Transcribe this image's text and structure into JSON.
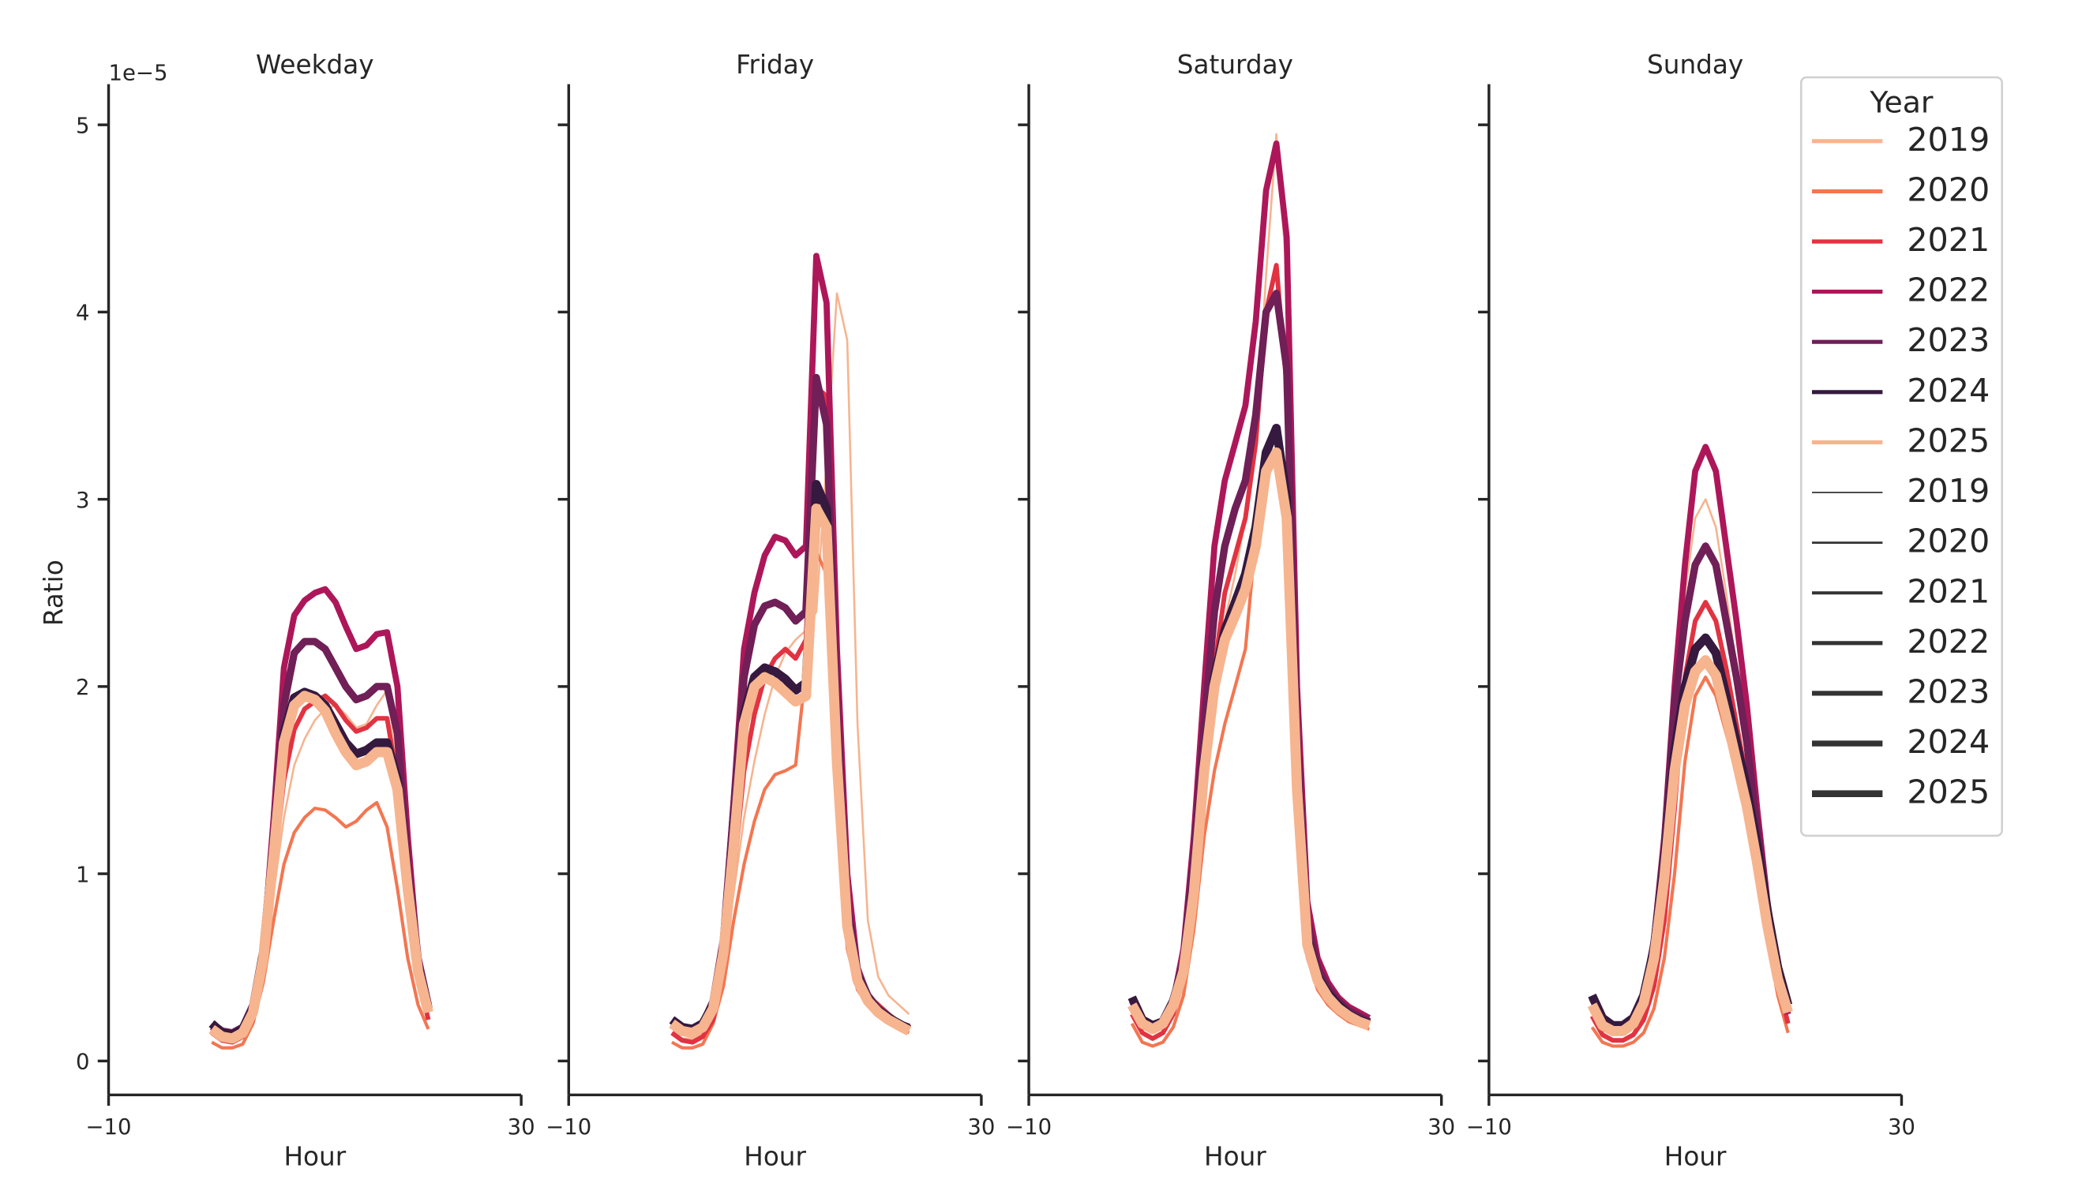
{
  "chart_data": {
    "type": "line",
    "ylabel": "Ratio",
    "xlabel": "Hour",
    "offset_label": "1e−5",
    "y_scale": 1e-05,
    "xlim": [
      -10,
      30
    ],
    "ylim": [
      -0.18,
      5.22
    ],
    "x_ticks": [
      -10,
      30
    ],
    "x_tick_labels": [
      "−10",
      "30"
    ],
    "y_ticks": [
      0,
      1,
      2,
      3,
      4,
      5
    ],
    "y_tick_labels": [
      "0",
      "1",
      "2",
      "3",
      "4",
      "5"
    ],
    "hours": [
      0,
      1,
      2,
      3,
      4,
      5,
      6,
      7,
      8,
      9,
      10,
      11,
      12,
      13,
      14,
      15,
      16,
      17,
      18,
      19,
      20,
      21,
      22,
      23
    ],
    "grid": false,
    "legend": {
      "title": "Year",
      "placement": "top-right",
      "hue_entries": [
        {
          "label": "2019",
          "color": "#f6b48f",
          "width": 2
        },
        {
          "label": "2020",
          "color": "#f37651",
          "width": 2
        },
        {
          "label": "2021",
          "color": "#e13342",
          "width": 2
        },
        {
          "label": "2022",
          "color": "#ad1759",
          "width": 2
        },
        {
          "label": "2023",
          "color": "#701f57",
          "width": 2
        },
        {
          "label": "2024",
          "color": "#35193e",
          "width": 2
        },
        {
          "label": "2025",
          "color": "#f6b48f",
          "width": 2
        }
      ],
      "size_entries": [
        {
          "label": "2019",
          "width": 1
        },
        {
          "label": "2020",
          "width": 1.6
        },
        {
          "label": "2021",
          "width": 2.3
        },
        {
          "label": "2022",
          "width": 3
        },
        {
          "label": "2023",
          "width": 3.6
        },
        {
          "label": "2024",
          "width": 4.3
        },
        {
          "label": "2025",
          "width": 5
        }
      ],
      "size_color": "#333333"
    },
    "panels": [
      {
        "title": "Weekday",
        "series": [
          {
            "year": "2019",
            "color": "#f6b48f",
            "width": 1,
            "values": [
              0.15,
              0.12,
              0.12,
              0.15,
              0.25,
              0.5,
              0.9,
              1.3,
              1.58,
              1.72,
              1.82,
              1.88,
              1.9,
              1.85,
              1.78,
              1.8,
              1.9,
              1.98,
              1.6,
              0.95,
              0.45,
              0.25
            ]
          },
          {
            "year": "2020",
            "color": "#f37651",
            "width": 1.6,
            "values": [
              0.1,
              0.07,
              0.07,
              0.09,
              0.2,
              0.42,
              0.75,
              1.05,
              1.22,
              1.3,
              1.35,
              1.34,
              1.3,
              1.25,
              1.28,
              1.34,
              1.38,
              1.25,
              0.92,
              0.55,
              0.3,
              0.17
            ]
          },
          {
            "year": "2021",
            "color": "#e13342",
            "width": 2.3,
            "values": [
              0.15,
              0.11,
              0.1,
              0.13,
              0.22,
              0.5,
              1.0,
              1.5,
              1.77,
              1.88,
              1.92,
              1.95,
              1.9,
              1.82,
              1.76,
              1.78,
              1.83,
              1.83,
              1.5,
              0.9,
              0.45,
              0.22
            ]
          },
          {
            "year": "2022",
            "color": "#ad1759",
            "width": 3,
            "values": [
              0.18,
              0.14,
              0.14,
              0.17,
              0.28,
              0.6,
              1.3,
              2.1,
              2.38,
              2.46,
              2.5,
              2.52,
              2.45,
              2.32,
              2.2,
              2.22,
              2.28,
              2.29,
              2.0,
              1.2,
              0.55,
              0.28
            ]
          },
          {
            "year": "2023",
            "color": "#701f57",
            "width": 3.6,
            "values": [
              0.2,
              0.16,
              0.15,
              0.18,
              0.3,
              0.6,
              1.2,
              1.9,
              2.18,
              2.24,
              2.24,
              2.2,
              2.1,
              2.0,
              1.93,
              1.95,
              2.0,
              2.0,
              1.75,
              1.05,
              0.55,
              0.3
            ]
          },
          {
            "year": "2024",
            "color": "#35193e",
            "width": 4.3,
            "values": [
              0.2,
              0.15,
              0.14,
              0.17,
              0.28,
              0.58,
              1.15,
              1.75,
              1.94,
              1.97,
              1.95,
              1.9,
              1.8,
              1.7,
              1.64,
              1.66,
              1.7,
              1.7,
              1.5,
              0.95,
              0.5,
              0.28
            ]
          },
          {
            "year": "2025",
            "color": "#f6b48f",
            "width": 5,
            "values": [
              0.17,
              0.13,
              0.12,
              0.15,
              0.26,
              0.55,
              1.1,
              1.7,
              1.9,
              1.95,
              1.93,
              1.87,
              1.75,
              1.65,
              1.58,
              1.6,
              1.65,
              1.65,
              1.45,
              0.92,
              0.48,
              0.26
            ]
          }
        ]
      },
      {
        "title": "Friday",
        "series": [
          {
            "year": "2019",
            "color": "#f6b48f",
            "width": 1,
            "values": [
              0.15,
              0.12,
              0.12,
              0.15,
              0.25,
              0.5,
              0.9,
              1.3,
              1.6,
              1.85,
              2.05,
              2.18,
              2.25,
              2.3,
              2.4,
              3.2,
              4.1,
              3.85,
              1.8,
              0.75,
              0.45,
              0.35,
              0.3,
              0.25
            ]
          },
          {
            "year": "2020",
            "color": "#f37651",
            "width": 1.6,
            "values": [
              0.1,
              0.07,
              0.07,
              0.09,
              0.2,
              0.4,
              0.75,
              1.05,
              1.28,
              1.45,
              1.53,
              1.55,
              1.58,
              2.1,
              2.72,
              2.6,
              1.4,
              0.6,
              0.38,
              0.3,
              0.25,
              0.2,
              0.18,
              0.15
            ]
          },
          {
            "year": "2021",
            "color": "#e13342",
            "width": 2.3,
            "values": [
              0.15,
              0.11,
              0.1,
              0.13,
              0.22,
              0.5,
              1.0,
              1.55,
              1.85,
              2.05,
              2.15,
              2.2,
              2.15,
              2.25,
              3.6,
              3.55,
              2.0,
              0.9,
              0.5,
              0.35,
              0.3,
              0.25,
              0.2,
              0.18
            ]
          },
          {
            "year": "2022",
            "color": "#ad1759",
            "width": 3,
            "values": [
              0.2,
              0.16,
              0.16,
              0.19,
              0.3,
              0.65,
              1.4,
              2.2,
              2.5,
              2.7,
              2.8,
              2.78,
              2.7,
              2.75,
              4.3,
              4.05,
              2.2,
              1.0,
              0.5,
              0.35,
              0.28,
              0.24,
              0.2,
              0.18
            ]
          },
          {
            "year": "2023",
            "color": "#701f57",
            "width": 3.6,
            "values": [
              0.22,
              0.18,
              0.17,
              0.2,
              0.32,
              0.65,
              1.35,
              2.05,
              2.33,
              2.43,
              2.45,
              2.42,
              2.35,
              2.4,
              3.65,
              3.4,
              1.9,
              0.85,
              0.48,
              0.35,
              0.28,
              0.24,
              0.2,
              0.18
            ]
          },
          {
            "year": "2024",
            "color": "#35193e",
            "width": 4.3,
            "values": [
              0.22,
              0.18,
              0.17,
              0.2,
              0.3,
              0.6,
              1.2,
              1.85,
              2.05,
              2.1,
              2.08,
              2.04,
              1.98,
              2.02,
              3.08,
              2.95,
              1.65,
              0.75,
              0.45,
              0.33,
              0.27,
              0.23,
              0.2,
              0.17
            ]
          },
          {
            "year": "2025",
            "color": "#f6b48f",
            "width": 5,
            "values": [
              0.2,
              0.16,
              0.15,
              0.18,
              0.28,
              0.58,
              1.15,
              1.8,
              2.0,
              2.05,
              2.02,
              1.97,
              1.92,
              1.95,
              2.95,
              2.85,
              1.6,
              0.72,
              0.43,
              0.32,
              0.26,
              0.22,
              0.19,
              0.16
            ]
          }
        ]
      },
      {
        "title": "Saturday",
        "series": [
          {
            "year": "2019",
            "color": "#f6b48f",
            "width": 1,
            "values": [
              0.3,
              0.2,
              0.18,
              0.2,
              0.3,
              0.5,
              0.9,
              1.5,
              2.0,
              2.35,
              2.6,
              2.9,
              3.3,
              4.2,
              4.95,
              4.2,
              1.8,
              0.75,
              0.5,
              0.4,
              0.33,
              0.28,
              0.25,
              0.22
            ]
          },
          {
            "year": "2020",
            "color": "#f37651",
            "width": 1.6,
            "values": [
              0.2,
              0.1,
              0.08,
              0.1,
              0.18,
              0.35,
              0.7,
              1.2,
              1.55,
              1.8,
              2.0,
              2.2,
              2.8,
              3.15,
              3.25,
              2.8,
              1.35,
              0.55,
              0.38,
              0.3,
              0.25,
              0.21,
              0.19,
              0.17
            ]
          },
          {
            "year": "2021",
            "color": "#e13342",
            "width": 2.3,
            "values": [
              0.25,
              0.15,
              0.12,
              0.15,
              0.25,
              0.45,
              0.9,
              1.6,
              2.1,
              2.5,
              2.7,
              2.9,
              3.3,
              4.0,
              4.25,
              3.6,
              1.7,
              0.7,
              0.45,
              0.35,
              0.29,
              0.25,
              0.22,
              0.2
            ]
          },
          {
            "year": "2022",
            "color": "#ad1759",
            "width": 3,
            "values": [
              0.32,
              0.2,
              0.18,
              0.2,
              0.32,
              0.6,
              1.2,
              2.0,
              2.75,
              3.1,
              3.3,
              3.5,
              3.95,
              4.65,
              4.9,
              4.4,
              2.0,
              0.85,
              0.55,
              0.42,
              0.34,
              0.29,
              0.26,
              0.23
            ]
          },
          {
            "year": "2023",
            "color": "#701f57",
            "width": 3.6,
            "values": [
              0.34,
              0.22,
              0.19,
              0.21,
              0.32,
              0.55,
              1.1,
              1.8,
              2.4,
              2.75,
              2.95,
              3.1,
              3.45,
              4.0,
              4.1,
              3.7,
              1.75,
              0.75,
              0.5,
              0.39,
              0.32,
              0.27,
              0.24,
              0.21
            ]
          },
          {
            "year": "2024",
            "color": "#35193e",
            "width": 4.3,
            "values": [
              0.34,
              0.22,
              0.19,
              0.21,
              0.32,
              0.5,
              0.95,
              1.6,
              2.05,
              2.3,
              2.45,
              2.6,
              2.85,
              3.25,
              3.38,
              3.0,
              1.5,
              0.65,
              0.45,
              0.36,
              0.3,
              0.25,
              0.22,
              0.2
            ]
          },
          {
            "year": "2025",
            "color": "#f6b48f",
            "width": 5,
            "values": [
              0.3,
              0.2,
              0.17,
              0.2,
              0.3,
              0.48,
              0.9,
              1.55,
              2.0,
              2.25,
              2.38,
              2.52,
              2.75,
              3.15,
              3.25,
              2.9,
              1.45,
              0.62,
              0.43,
              0.34,
              0.28,
              0.24,
              0.21,
              0.19
            ]
          }
        ]
      },
      {
        "title": "Sunday",
        "series": [
          {
            "year": "2019",
            "color": "#f6b48f",
            "width": 1,
            "values": [
              0.3,
              0.2,
              0.16,
              0.17,
              0.2,
              0.3,
              0.55,
              1.0,
              1.65,
              2.5,
              2.9,
              3.0,
              2.85,
              2.5,
              2.1,
              1.6,
              1.1,
              0.7,
              0.4,
              0.22
            ]
          },
          {
            "year": "2020",
            "color": "#f37651",
            "width": 1.6,
            "values": [
              0.18,
              0.1,
              0.08,
              0.08,
              0.1,
              0.15,
              0.28,
              0.55,
              1.0,
              1.6,
              1.95,
              2.05,
              1.95,
              1.75,
              1.55,
              1.3,
              1.0,
              0.65,
              0.35,
              0.15
            ]
          },
          {
            "year": "2021",
            "color": "#e13342",
            "width": 2.3,
            "values": [
              0.24,
              0.14,
              0.11,
              0.11,
              0.14,
              0.22,
              0.4,
              0.75,
              1.35,
              2.05,
              2.35,
              2.45,
              2.35,
              2.1,
              1.8,
              1.5,
              1.15,
              0.75,
              0.42,
              0.2
            ]
          },
          {
            "year": "2022",
            "color": "#ad1759",
            "width": 3,
            "values": [
              0.33,
              0.22,
              0.18,
              0.18,
              0.22,
              0.35,
              0.65,
              1.2,
              2.0,
              2.65,
              3.15,
              3.28,
              3.15,
              2.75,
              2.35,
              1.9,
              1.35,
              0.85,
              0.48,
              0.25
            ]
          },
          {
            "year": "2023",
            "color": "#701f57",
            "width": 3.6,
            "values": [
              0.34,
              0.22,
              0.18,
              0.18,
              0.22,
              0.35,
              0.62,
              1.15,
              1.9,
              2.35,
              2.65,
              2.75,
              2.65,
              2.35,
              2.05,
              1.7,
              1.25,
              0.82,
              0.48,
              0.27
            ]
          },
          {
            "year": "2024",
            "color": "#35193e",
            "width": 4.3,
            "values": [
              0.35,
              0.23,
              0.19,
              0.19,
              0.23,
              0.35,
              0.6,
              1.05,
              1.65,
              2.0,
              2.2,
              2.26,
              2.18,
              1.95,
              1.7,
              1.45,
              1.15,
              0.8,
              0.5,
              0.3
            ]
          },
          {
            "year": "2025",
            "color": "#f6b48f",
            "width": 5,
            "values": [
              0.3,
              0.19,
              0.16,
              0.16,
              0.2,
              0.31,
              0.55,
              0.98,
              1.55,
              1.9,
              2.08,
              2.14,
              2.06,
              1.84,
              1.6,
              1.36,
              1.06,
              0.72,
              0.44,
              0.26
            ]
          }
        ]
      }
    ]
  }
}
